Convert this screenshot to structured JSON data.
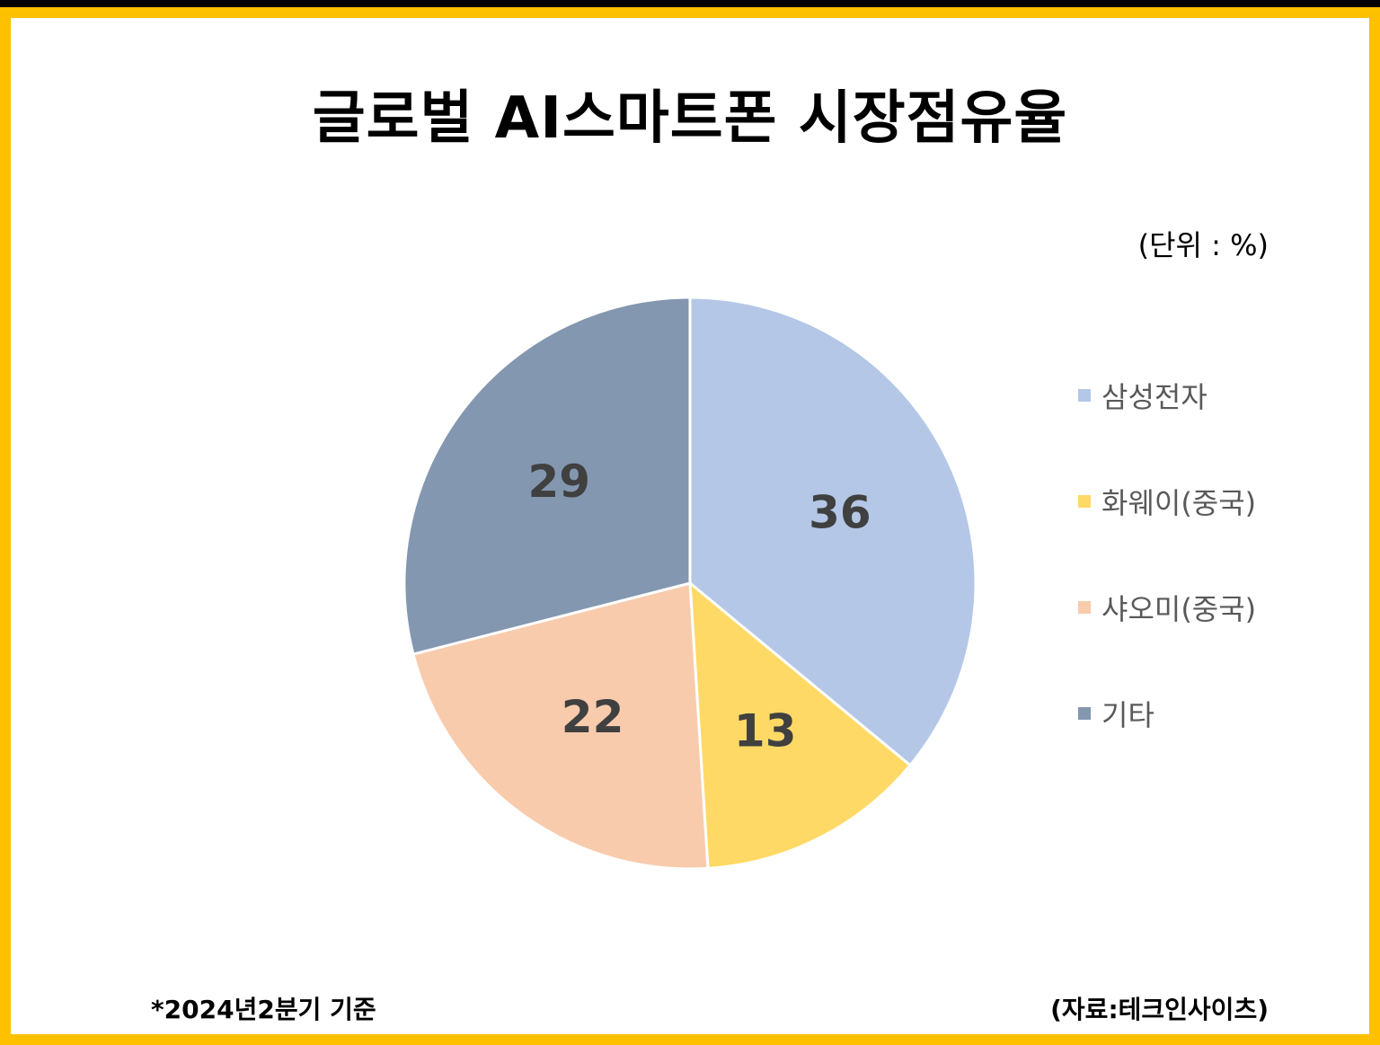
{
  "colors": {
    "border": "#FFC000",
    "background": "#FFFFFF",
    "label_text": "#404040",
    "legend_text": "#595959"
  },
  "chart_data": {
    "type": "pie",
    "title": "글로벌 AI스마트폰 시장점유율",
    "unit_note": "(단위 : %)",
    "categories": [
      "삼성전자",
      "화웨이(중국)",
      "샤오미(중국)",
      "기타"
    ],
    "values": [
      36,
      13,
      22,
      29
    ],
    "slice_colors": [
      "#B4C7E7",
      "#FFD966",
      "#F8CBAD",
      "#8497B0"
    ],
    "legend_position": "right",
    "data_labels": true
  },
  "footnote": "*2024년2분기 기준",
  "source": "(자료:테크인사이츠)"
}
